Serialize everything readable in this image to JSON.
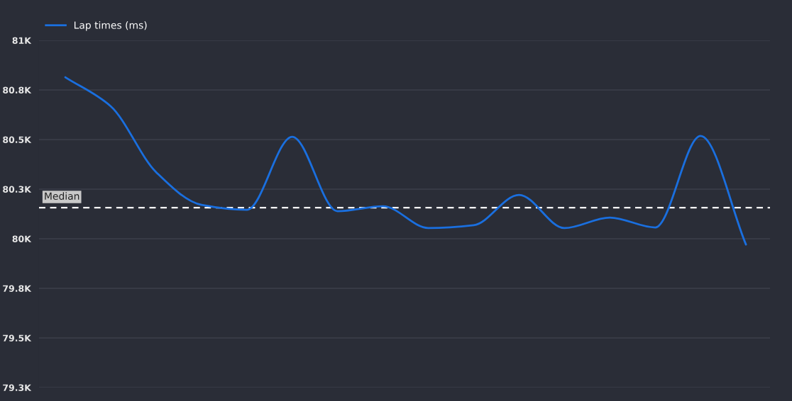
{
  "chart_data": {
    "type": "line",
    "categories": [
      null,
      null,
      null,
      null,
      null,
      null,
      null,
      null,
      null,
      null,
      null,
      null,
      null,
      null,
      null,
      null
    ],
    "series": [
      {
        "name": "Lap times (ms)",
        "color": "#1a6fdf",
        "values": [
          80814,
          80668,
          80336,
          80171,
          80146,
          80514,
          80139,
          80164,
          80054,
          80068,
          80221,
          80054,
          80107,
          80057,
          80518,
          79971
        ]
      }
    ],
    "ylim": [
      79250,
      81000
    ],
    "yticks": [
      {
        "value": 81000,
        "label": "81K"
      },
      {
        "value": 80750,
        "label": "80.8K"
      },
      {
        "value": 80500,
        "label": "80.5K"
      },
      {
        "value": 80250,
        "label": "80.3K"
      },
      {
        "value": 80000,
        "label": "80K"
      },
      {
        "value": 79750,
        "label": "79.8K"
      },
      {
        "value": 79500,
        "label": "79.5K"
      },
      {
        "value": 79250,
        "label": "79.3K"
      }
    ],
    "ref_lines": [
      {
        "axis": "y",
        "value": 80157,
        "label": "Median",
        "color": "#ffffff",
        "line_style": "dashed"
      }
    ],
    "grid": "y",
    "legend": "top left",
    "tick_labels": "y",
    "marker": "none",
    "line_style": "solid"
  }
}
